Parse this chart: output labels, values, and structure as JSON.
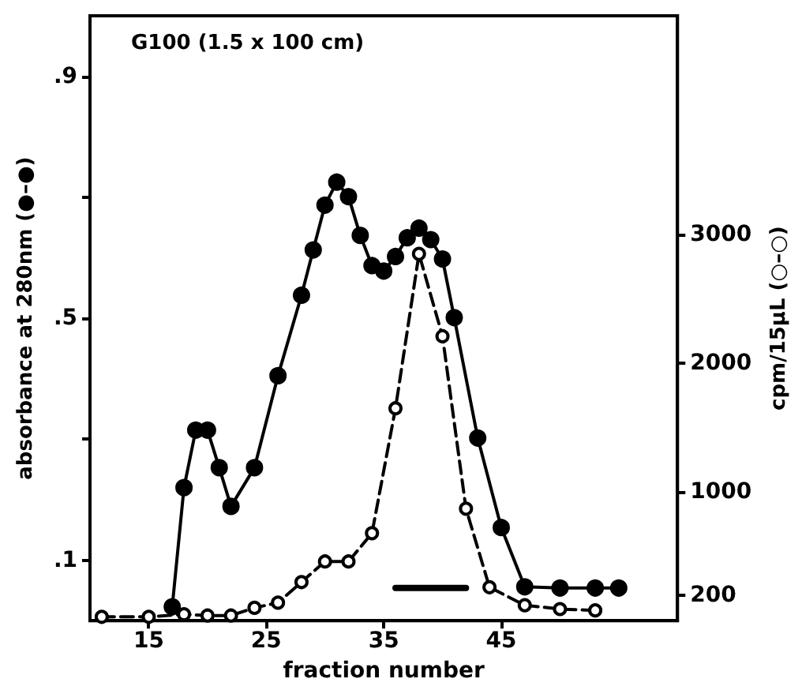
{
  "chart_data": {
    "type": "line",
    "title": "G100 (1.5 x 100 cm)",
    "xlabel": "fraction number",
    "ylabel": "absorbance at 280nm (●–●)",
    "y2label": "cpm/15µL (○–○)",
    "xlim": [
      10,
      60
    ],
    "xticks": [
      15,
      25,
      35,
      45
    ],
    "ylim": [
      0,
      1.0
    ],
    "yticks": [
      {
        "value": 0.1,
        "label": ".1"
      },
      {
        "value": 0.3,
        "label": null
      },
      {
        "value": 0.5,
        "label": ".5"
      },
      {
        "value": 0.7,
        "label": null
      },
      {
        "value": 0.9,
        "label": ".9"
      }
    ],
    "y2lim": [
      0,
      4700
    ],
    "y2ticks": [
      200,
      1000,
      2000,
      3000
    ],
    "grid": false,
    "series": [
      {
        "color": "#000000",
        "marker": "circle",
        "line_style": "solid",
        "x": [
          17,
          18,
          19,
          20,
          21,
          22,
          24,
          26,
          28,
          29,
          30,
          31,
          32,
          33,
          34,
          35,
          36,
          37,
          38,
          39,
          40,
          41,
          43,
          45,
          47,
          50,
          53,
          55
        ],
        "values": [
          0.023,
          0.22,
          0.315,
          0.315,
          0.253,
          0.189,
          0.253,
          0.405,
          0.538,
          0.613,
          0.687,
          0.725,
          0.701,
          0.637,
          0.587,
          0.578,
          0.602,
          0.633,
          0.649,
          0.63,
          0.598,
          0.501,
          0.302,
          0.154,
          0.056,
          0.054,
          0.054,
          0.054
        ]
      },
      {
        "color": "#000000",
        "marker": "circle",
        "line_style": "dashed",
        "axis": "y2",
        "x": [
          11,
          15,
          18,
          20,
          22,
          24,
          26,
          28,
          30,
          32,
          34,
          36,
          38,
          40,
          42,
          44,
          47,
          50,
          53
        ],
        "values": [
          30,
          30,
          50,
          40,
          40,
          100,
          140,
          300,
          460,
          460,
          680,
          1650,
          2850,
          2210,
          870,
          260,
          120,
          90,
          80
        ]
      },
      {
        "color": "#000000",
        "marker": "none",
        "line_style": "solid",
        "x": [
          36,
          42
        ],
        "values": [
          0.054,
          0.054
        ]
      }
    ]
  }
}
